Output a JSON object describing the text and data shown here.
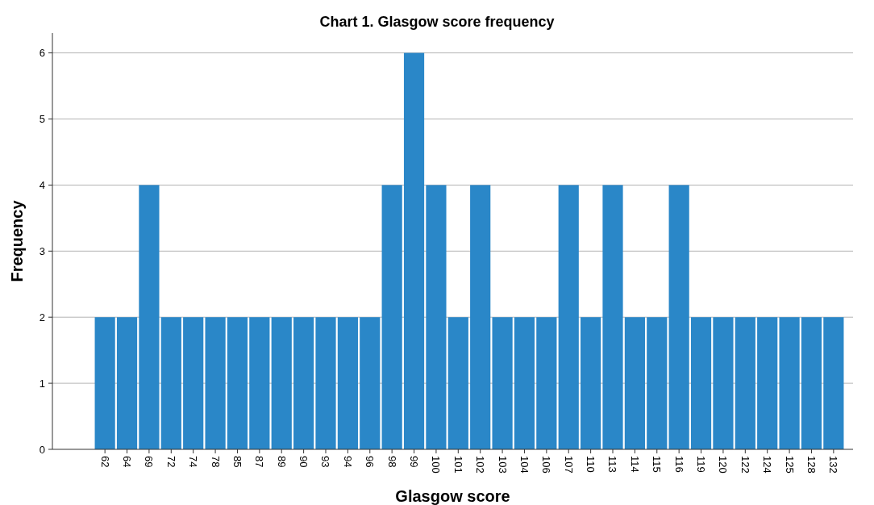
{
  "chart_data": {
    "type": "bar",
    "title": "Chart 1. Glasgow score frequency",
    "xlabel": "Glasgow score",
    "ylabel": "Frequency",
    "categories": [
      "62",
      "64",
      "69",
      "72",
      "74",
      "78",
      "85",
      "87",
      "89",
      "90",
      "93",
      "94",
      "96",
      "98",
      "99",
      "100",
      "101",
      "102",
      "103",
      "104",
      "106",
      "107",
      "110",
      "113",
      "114",
      "115",
      "116",
      "119",
      "120",
      "122",
      "124",
      "125",
      "128",
      "132"
    ],
    "values": [
      2,
      2,
      4,
      2,
      2,
      2,
      2,
      2,
      2,
      2,
      2,
      2,
      2,
      4,
      6,
      4,
      2,
      4,
      2,
      2,
      2,
      4,
      2,
      4,
      2,
      2,
      4,
      2,
      2,
      2,
      2,
      2,
      2,
      2
    ],
    "color": "#2a87c8",
    "ylim": [
      0,
      6.3
    ],
    "yticks": [
      0,
      1,
      2,
      3,
      4,
      5,
      6
    ],
    "grid": "y"
  }
}
